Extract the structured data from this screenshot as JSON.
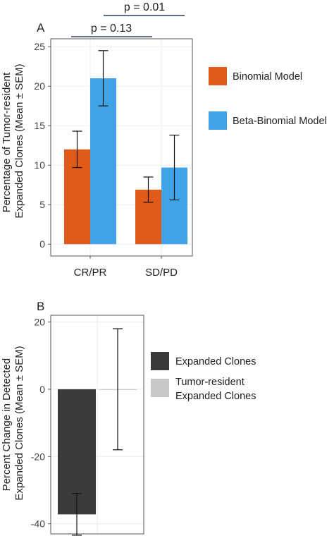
{
  "chart_data": [
    {
      "panel_label": "A",
      "type": "bar",
      "categories": [
        "CR/PR",
        "SD/PD"
      ],
      "series": [
        {
          "name": "Binomial Model",
          "values": [
            12.0,
            6.9
          ],
          "sem": [
            2.3,
            1.6
          ]
        },
        {
          "name": "Beta-Binomial Model",
          "values": [
            21.0,
            9.7
          ],
          "sem": [
            3.5,
            4.1
          ]
        }
      ],
      "ylabel": "Percentage of Tumor-resident\nExpanded Clones (Mean ± SEM)",
      "ylim": [
        -1.5,
        26
      ],
      "yticks": [
        0,
        5,
        10,
        15,
        20,
        25
      ],
      "grid": true,
      "legend_position": "right",
      "annotations": [
        {
          "text": "p = 0.13",
          "span": "CR/PR bars"
        },
        {
          "text": "p = 0.01",
          "span": "CR/PR Beta-Binomial to SD/PD Beta-Binomial"
        }
      ]
    },
    {
      "panel_label": "B",
      "type": "bar",
      "categories": [
        ""
      ],
      "series": [
        {
          "name": "Expanded Clones",
          "values": [
            -37.2
          ],
          "sem": [
            6.2
          ]
        },
        {
          "name": "Tumor-resident\nExpanded Clones",
          "values": [
            0.0
          ],
          "sem": [
            18.0
          ]
        }
      ],
      "ylabel": "Percent Change in Detected\nExpanded Clones (Mean ± SEM)",
      "ylim": [
        -43,
        22
      ],
      "yticks": [
        -40,
        -20,
        0,
        20
      ],
      "grid": true,
      "legend_position": "right"
    }
  ],
  "colors": {
    "binomial": "#e05a1a",
    "beta_binomial": "#3fa3e8",
    "expanded": "#3b3b3b",
    "tumor_resident": "#c8c8c8",
    "bracket": "#2c3e66",
    "grid": "#ececec",
    "panel_border": "#555555"
  }
}
